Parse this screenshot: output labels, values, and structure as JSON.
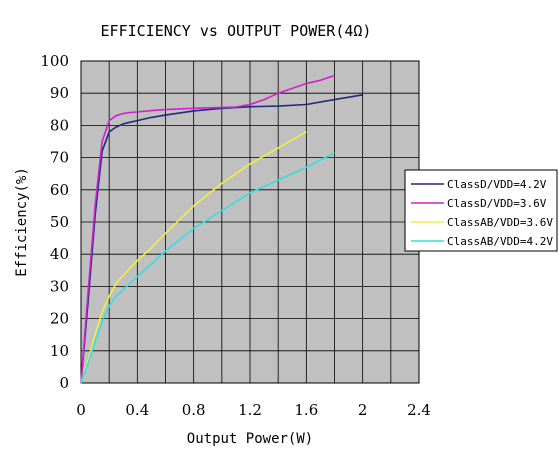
{
  "chart_data": {
    "type": "line",
    "title": "EFFICIENCY vs OUTPUT POWER(4Ω)",
    "xlabel": "Output Power(W)",
    "ylabel": "Efficiency(%)",
    "xlim": [
      0,
      2.4
    ],
    "ylim": [
      0,
      100
    ],
    "xticks": [
      "0",
      "0.4",
      "0.8",
      "1.2",
      "1.6",
      "2",
      "2.4"
    ],
    "yticks": [
      "0",
      "10",
      "20",
      "30",
      "40",
      "50",
      "60",
      "70",
      "80",
      "90",
      "100"
    ],
    "grid": true,
    "legend_position": "right",
    "series": [
      {
        "name": "ClassD/VDD=4.2V",
        "color": "#1f2a7a",
        "x": [
          0,
          0.05,
          0.1,
          0.15,
          0.2,
          0.25,
          0.3,
          0.35,
          0.4,
          0.5,
          0.6,
          0.8,
          1.0,
          1.2,
          1.4,
          1.6,
          1.8,
          2.0
        ],
        "y": [
          0,
          25,
          52,
          72,
          78,
          79.5,
          80.5,
          81,
          81.5,
          82.5,
          83.2,
          84.5,
          85.3,
          85.8,
          86,
          86.5,
          88,
          89.5
        ]
      },
      {
        "name": "ClassD/VDD=3.6V",
        "color": "#d020d0",
        "x": [
          0,
          0.05,
          0.1,
          0.15,
          0.2,
          0.25,
          0.3,
          0.35,
          0.4,
          0.5,
          0.6,
          0.8,
          1.0,
          1.1,
          1.2,
          1.3,
          1.4,
          1.5,
          1.6,
          1.7,
          1.8
        ],
        "y": [
          0,
          28,
          55,
          75,
          81.5,
          83,
          83.7,
          84,
          84.2,
          84.6,
          84.9,
          85.3,
          85.6,
          85.7,
          86.5,
          88,
          90,
          91.5,
          93,
          94,
          95.5
        ]
      },
      {
        "name": "ClassAB/VDD=3.6V",
        "color": "#f0f040",
        "x": [
          0,
          0.05,
          0.1,
          0.15,
          0.2,
          0.25,
          0.3,
          0.4,
          0.5,
          0.6,
          0.8,
          1.0,
          1.2,
          1.4,
          1.6
        ],
        "y": [
          0,
          7,
          15,
          22,
          27,
          31,
          33.5,
          38,
          42,
          46.5,
          55,
          62,
          68,
          73,
          78
        ]
      },
      {
        "name": "ClassAB/VDD=4.2V",
        "color": "#30e0e0",
        "x": [
          0,
          0.05,
          0.1,
          0.15,
          0.2,
          0.25,
          0.3,
          0.4,
          0.5,
          0.6,
          0.8,
          1.0,
          1.2,
          1.4,
          1.6,
          1.8
        ],
        "y": [
          0,
          6,
          13,
          19,
          24,
          27,
          29,
          33,
          37,
          41,
          48,
          53.5,
          59,
          63,
          67,
          71.5
        ]
      }
    ]
  }
}
